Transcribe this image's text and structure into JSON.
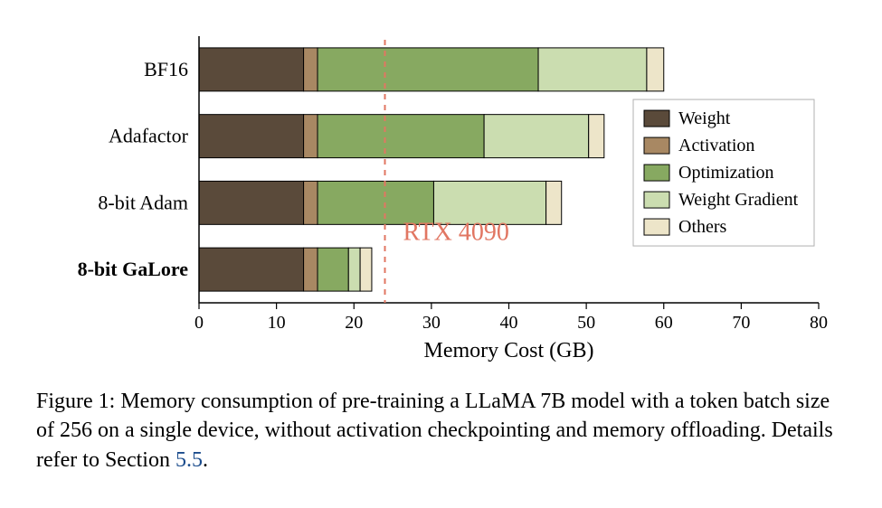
{
  "chart": {
    "type": "bar",
    "orientation": "horizontal-stacked",
    "xlabel": "Memory Cost (GB)",
    "xlim": [
      0,
      80
    ],
    "xtick_step": 10,
    "xticks": [
      0,
      10,
      20,
      30,
      40,
      50,
      60,
      70,
      80
    ],
    "background_color": "#ffffff",
    "axis_color": "#000000",
    "bar_edge_color": "#000000",
    "bar_gap_ratio": 0.35,
    "categories": [
      {
        "label": "BF16",
        "bold": false
      },
      {
        "label": "Adafactor",
        "bold": false
      },
      {
        "label": "8-bit Adam",
        "bold": false
      },
      {
        "label": "8-bit GaLore",
        "bold": true
      }
    ],
    "segments": [
      {
        "key": "weight",
        "label": "Weight",
        "color": "#5a4a3a"
      },
      {
        "key": "activation",
        "label": "Activation",
        "color": "#a88863"
      },
      {
        "key": "optimization",
        "label": "Optimization",
        "color": "#87a961"
      },
      {
        "key": "weight_gradient",
        "label": "Weight Gradient",
        "color": "#cbddb0"
      },
      {
        "key": "others",
        "label": "Others",
        "color": "#ede5c9"
      }
    ],
    "data": {
      "BF16": {
        "weight": 13.5,
        "activation": 1.8,
        "optimization": 28.5,
        "weight_gradient": 14.0,
        "others": 2.2
      },
      "Adafactor": {
        "weight": 13.5,
        "activation": 1.8,
        "optimization": 21.5,
        "weight_gradient": 13.5,
        "others": 2.0
      },
      "8-bit Adam": {
        "weight": 13.5,
        "activation": 1.8,
        "optimization": 15.0,
        "weight_gradient": 14.5,
        "others": 2.0
      },
      "8-bit GaLore": {
        "weight": 13.5,
        "activation": 1.8,
        "optimization": 4.0,
        "weight_gradient": 1.5,
        "others": 1.5
      }
    },
    "reference_line": {
      "x": 24,
      "label": "RTX 4090",
      "color": "#e17662",
      "dash": "6,6"
    },
    "legend": {
      "position": "right-middle",
      "bg": "#ffffff",
      "border": "#b0b0b0"
    },
    "label_fontsize_pt": 16,
    "tick_fontsize_pt": 15,
    "xlabel_fontsize_pt": 18,
    "rtx_fontsize_pt": 22
  },
  "caption": {
    "prefix": "Figure 1:",
    "body_1": "Memory consumption of pre-training a LLaMA 7B model with a token batch size of 256 on a single device, without activation checkpointing and memory offloading. Details refer to Section ",
    "section_ref": "5.5",
    "body_2": "."
  }
}
